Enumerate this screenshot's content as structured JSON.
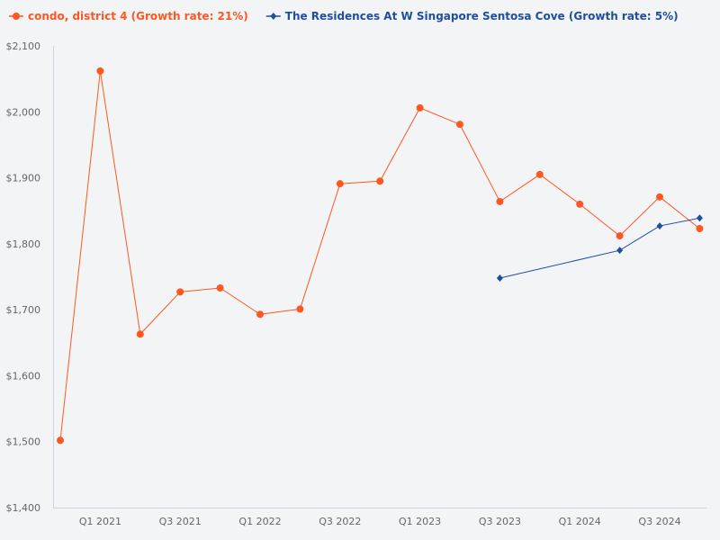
{
  "chart_data": {
    "type": "line",
    "x": [
      "Q4 2020",
      "Q1 2021",
      "Q2 2021",
      "Q3 2021",
      "Q4 2021",
      "Q1 2022",
      "Q2 2022",
      "Q3 2022",
      "Q4 2022",
      "Q1 2023",
      "Q2 2023",
      "Q3 2023",
      "Q4 2023",
      "Q1 2024",
      "Q2 2024",
      "Q3 2024",
      "Q4 2024"
    ],
    "x_tick_labels": [
      "Q1 2021",
      "Q3 2021",
      "Q1 2022",
      "Q3 2022",
      "Q1 2023",
      "Q3 2023",
      "Q1 2024",
      "Q3 2024"
    ],
    "y_tick_labels": [
      "$1,400",
      "$1,500",
      "$1,600",
      "$1,700",
      "$1,800",
      "$1,900",
      "$2,000",
      "$2,100"
    ],
    "ylim": [
      1400,
      2100
    ],
    "grid": false,
    "legend_position": "top-left",
    "series": [
      {
        "name": "condo, district 4 (Growth rate: 21%)",
        "color": "#ff5722",
        "marker": "circle",
        "values": [
          1502,
          2062,
          1663,
          1727,
          1733,
          1693,
          1701,
          1891,
          1895,
          2006,
          1981,
          1864,
          1905,
          1860,
          1812,
          1871,
          1823
        ]
      },
      {
        "name": "The Residences At W Singapore Sentosa Cove (Growth rate: 5%)",
        "color": "#1f4e9e",
        "marker": "diamond",
        "values": [
          null,
          null,
          null,
          null,
          null,
          null,
          null,
          null,
          null,
          null,
          null,
          1748,
          null,
          null,
          1790,
          1827,
          1839
        ]
      }
    ]
  }
}
